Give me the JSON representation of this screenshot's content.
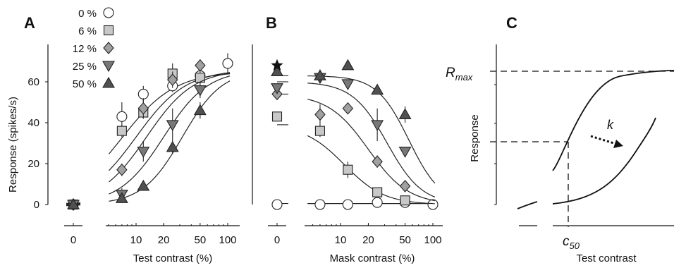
{
  "chart_data": [
    {
      "panel": "A",
      "type": "scatter",
      "xlabel": "Test contrast (%)",
      "ylabel": "Response (spikes/s)",
      "x_scale": "log",
      "x_ticks": [
        "0",
        "10",
        "20",
        "50",
        "100"
      ],
      "y_ticks": [
        "0",
        "20",
        "40",
        "60"
      ],
      "ylim": [
        0,
        70
      ],
      "legend_placement": "top-left",
      "series": [
        {
          "name": "0 %",
          "marker": "circle-open",
          "color": "#ffffff",
          "points": [
            [
              0,
              0
            ],
            [
              7,
              43
            ],
            [
              12,
              54
            ],
            [
              25,
              58
            ],
            [
              50,
              63
            ],
            [
              100,
              69
            ]
          ],
          "err": [
            0,
            7,
            4,
            3,
            3,
            5
          ],
          "fit": {
            "r0": 0,
            "rmax": 65,
            "c50": 7,
            "n": 1.5
          }
        },
        {
          "name": "6 %",
          "marker": "square",
          "color": "#c8c8c8",
          "points": [
            [
              0,
              0
            ],
            [
              7,
              36
            ],
            [
              12,
              45
            ],
            [
              25,
              64
            ],
            [
              50,
              62
            ]
          ],
          "err": [
            0,
            3,
            3,
            5,
            3
          ],
          "fit": {
            "r0": 0,
            "rmax": 66,
            "c50": 10,
            "n": 1.6
          }
        },
        {
          "name": "12 %",
          "marker": "diamond",
          "color": "#a0a0a0",
          "points": [
            [
              0,
              0
            ],
            [
              7,
              17
            ],
            [
              12,
              47
            ],
            [
              25,
              61
            ],
            [
              50,
              68
            ]
          ],
          "err": [
            0,
            3,
            5,
            4,
            3
          ],
          "fit": {
            "r0": 0,
            "rmax": 66,
            "c50": 13,
            "n": 1.7
          }
        },
        {
          "name": "25 %",
          "marker": "triangle-down",
          "color": "#787878",
          "points": [
            [
              0,
              0
            ],
            [
              7,
              5
            ],
            [
              12,
              26
            ],
            [
              25,
              39
            ],
            [
              50,
              56
            ]
          ],
          "err": [
            0,
            3,
            5,
            8,
            4
          ],
          "fit": {
            "r0": 0,
            "rmax": 66,
            "c50": 20,
            "n": 1.8
          }
        },
        {
          "name": "50 %",
          "marker": "triangle-up",
          "color": "#505050",
          "points": [
            [
              0,
              0
            ],
            [
              7,
              3
            ],
            [
              12,
              9
            ],
            [
              25,
              28
            ],
            [
              50,
              46
            ]
          ],
          "err": [
            0,
            2,
            2,
            3,
            4
          ],
          "fit": {
            "r0": 0,
            "rmax": 66,
            "c50": 32,
            "n": 2.0
          }
        }
      ]
    },
    {
      "panel": "B",
      "type": "scatter",
      "xlabel": "Mask contrast (%)",
      "x_scale": "log",
      "x_ticks": [
        "0",
        "10",
        "20",
        "50",
        "100"
      ],
      "ylim": [
        0,
        70
      ],
      "series": [
        {
          "marker": "circle-open",
          "color": "#ffffff",
          "points": [
            [
              0,
              0
            ],
            [
              6,
              0
            ],
            [
              12,
              0
            ],
            [
              25,
              1
            ],
            [
              50,
              1
            ],
            [
              100,
              0
            ]
          ],
          "fit": {
            "base": 0.5,
            "c50": 1000,
            "n": 1
          }
        },
        {
          "marker": "square",
          "color": "#c8c8c8",
          "points": [
            [
              0,
              43
            ],
            [
              6,
              36
            ],
            [
              12,
              17
            ],
            [
              25,
              6
            ],
            [
              50,
              2
            ]
          ],
          "err": [
            0,
            3,
            4,
            1,
            1
          ],
          "fit": {
            "base": 39,
            "c50": 11,
            "n": 2
          }
        },
        {
          "marker": "diamond",
          "color": "#a0a0a0",
          "points": [
            [
              0,
              54
            ],
            [
              6,
              44
            ],
            [
              12,
              47
            ],
            [
              25,
              21
            ],
            [
              50,
              9
            ]
          ],
          "err": [
            0,
            5,
            2,
            3,
            2
          ],
          "fit": {
            "base": 54,
            "c50": 20,
            "n": 2
          }
        },
        {
          "marker": "triangle-down",
          "color": "#787878",
          "points": [
            [
              0,
              57
            ],
            [
              6,
              62
            ],
            [
              12,
              59
            ],
            [
              25,
              39
            ],
            [
              50,
              26
            ]
          ],
          "err": [
            0,
            2,
            2,
            8,
            2
          ],
          "fit": {
            "base": 60,
            "c50": 32,
            "n": 2.3
          }
        },
        {
          "marker": "triangle-up",
          "color": "#505050",
          "points": [
            [
              0,
              65
            ],
            [
              6,
              63
            ],
            [
              12,
              68
            ],
            [
              25,
              56
            ],
            [
              50,
              44
            ]
          ],
          "err": [
            0,
            3,
            2,
            2,
            4
          ],
          "fit": {
            "base": 63,
            "c50": 55,
            "n": 2.5
          }
        },
        {
          "marker": "star",
          "color": "#111111",
          "points": [
            [
              0,
              68
            ]
          ]
        }
      ]
    },
    {
      "panel": "C",
      "type": "line",
      "xlabel": "Test contrast",
      "ylabel": "Response",
      "rmax_label": "R",
      "rmax_sub": "max",
      "c50_label": "c",
      "c50_sub": "50",
      "k_label": "k"
    }
  ]
}
